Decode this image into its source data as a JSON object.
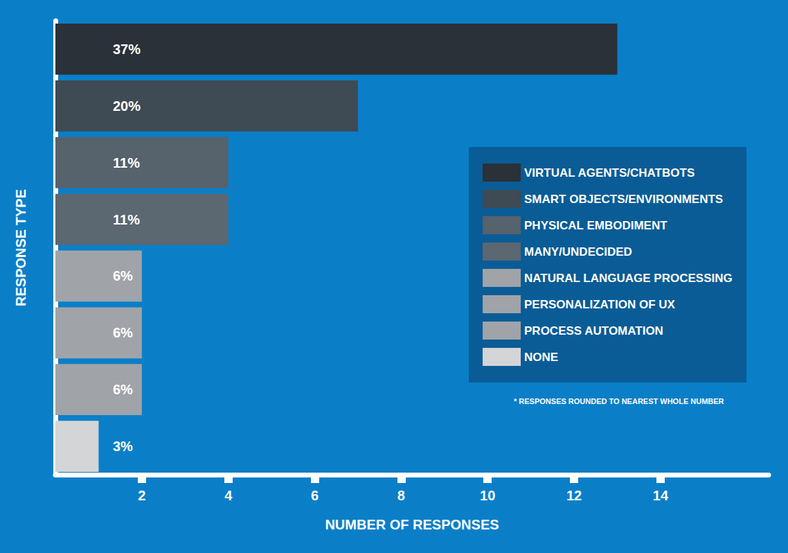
{
  "chart_data": {
    "type": "bar",
    "orientation": "horizontal",
    "x_label": "NUMBER OF RESPONSES",
    "y_label": "RESPONSE TYPE",
    "annotation": "* RESPONSES ROUNDED TO NEAREST WHOLE NUMBER",
    "categories": [
      "VIRTUAL AGENTS/CHATBOTS",
      "SMART OBJECTS/ENVIRONMENTS",
      "PHYSICAL EMBODIMENT",
      "MANY/UNDECIDED",
      "NATURAL LANGUAGE PROCESSING",
      "PERSONALIZATION OF UX",
      "PROCESS AUTOMATION",
      "NONE"
    ],
    "values": [
      13,
      7,
      4,
      4,
      2,
      2,
      2,
      1
    ],
    "percent_labels": [
      "37%",
      "20%",
      "11%",
      "11%",
      "6%",
      "6%",
      "6%",
      "3%"
    ],
    "colors": [
      "#2a3138",
      "#3e4a54",
      "#56626c",
      "#5b6771",
      "#a0a3a8",
      "#a0a3a8",
      "#a0a3a8",
      "#d4d5d7"
    ],
    "xlim": [
      0,
      16.5
    ],
    "xticks": [
      2,
      4,
      6,
      8,
      10,
      12,
      14
    ],
    "grid": false,
    "legend": "right",
    "tick_labels": "x"
  }
}
